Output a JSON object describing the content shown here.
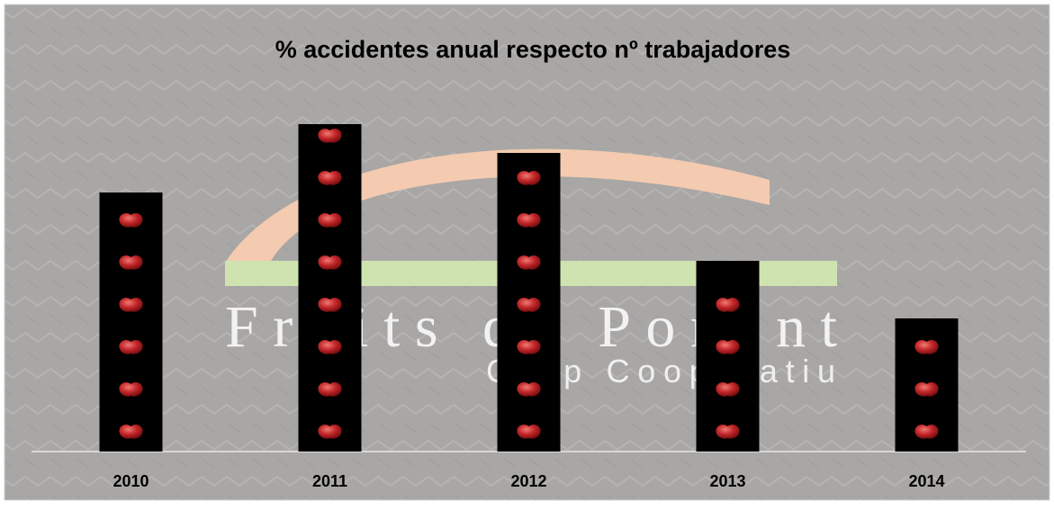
{
  "chart_data": {
    "type": "bar",
    "title": "% accidentes anual respecto nº trabajadores",
    "categories": [
      "2010",
      "2011",
      "2012",
      "2013",
      "2014"
    ],
    "values": [
      7.2,
      9.1,
      8.3,
      5.3,
      3.7
    ],
    "color": "#000000",
    "ylim": [
      0,
      10
    ],
    "logo": {
      "name": "Fruits de Ponent",
      "subtitle": "Grup Cooperatiu"
    }
  }
}
